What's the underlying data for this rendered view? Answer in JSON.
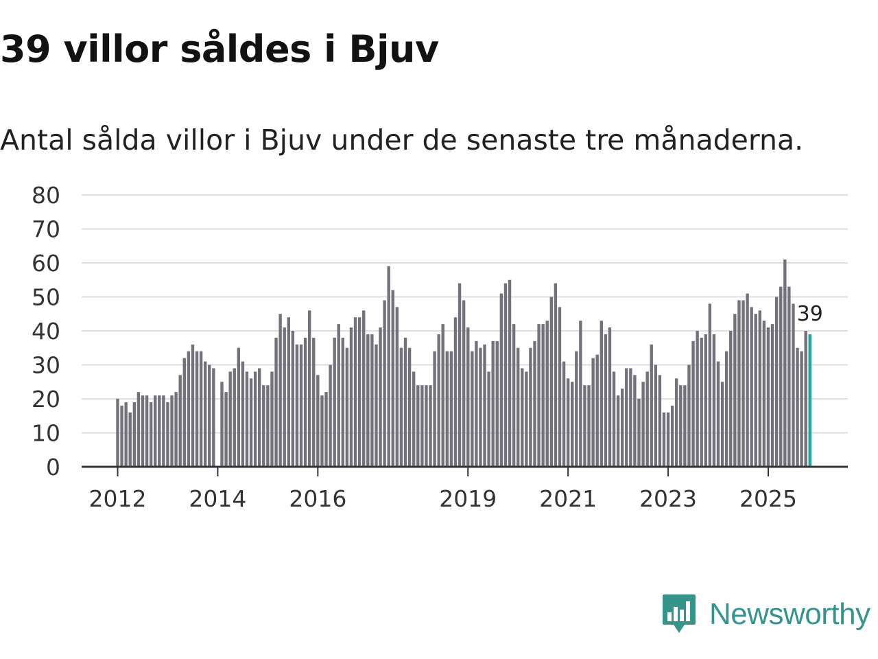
{
  "header": {
    "title": "39 villor såldes i Bjuv",
    "subtitle": "Antal sålda villor i Bjuv under de senaste tre månaderna."
  },
  "brand": {
    "name": "Newsworthy",
    "logo_icon": "bar-chart-speech-bubble-icon",
    "color": "#35958d"
  },
  "colors": {
    "bar": "#72727a",
    "highlight": "#1aa99a",
    "grid": "#dedede",
    "axis": "#333333"
  },
  "chart_data": {
    "type": "bar",
    "title": "39 villor såldes i Bjuv",
    "subtitle": "Antal sålda villor i Bjuv under de senaste tre månaderna.",
    "xlabel": "",
    "ylabel": "",
    "ylim": [
      0,
      80
    ],
    "yticks": [
      "0",
      "10",
      "20",
      "30",
      "40",
      "50",
      "60",
      "70",
      "80"
    ],
    "grid": true,
    "start": "2012-01",
    "x_tick_labels": [
      {
        "label": "2012",
        "index": 0
      },
      {
        "label": "2014",
        "index": 24
      },
      {
        "label": "2016",
        "index": 48
      },
      {
        "label": "2019",
        "index": 84
      },
      {
        "label": "2021",
        "index": 108
      },
      {
        "label": "2023",
        "index": 132
      },
      {
        "label": "2025",
        "index": 156
      }
    ],
    "values": [
      20,
      18,
      19,
      16,
      19,
      22,
      21,
      21,
      19,
      21,
      21,
      21,
      19,
      21,
      22,
      27,
      32,
      34,
      36,
      34,
      34,
      31,
      30,
      29,
      null,
      25,
      22,
      28,
      29,
      35,
      31,
      28,
      26,
      28,
      29,
      24,
      24,
      28,
      38,
      45,
      41,
      44,
      40,
      36,
      36,
      38,
      46,
      38,
      27,
      21,
      22,
      30,
      38,
      42,
      38,
      35,
      41,
      44,
      44,
      46,
      39,
      39,
      36,
      41,
      49,
      59,
      52,
      47,
      35,
      38,
      35,
      28,
      24,
      24,
      24,
      24,
      34,
      39,
      42,
      34,
      34,
      44,
      54,
      49,
      41,
      34,
      37,
      35,
      36,
      28,
      37,
      37,
      51,
      54,
      55,
      42,
      35,
      29,
      28,
      35,
      37,
      42,
      42,
      43,
      50,
      54,
      47,
      31,
      26,
      25,
      34,
      43,
      24,
      24,
      32,
      33,
      43,
      39,
      41,
      28,
      21,
      23,
      29,
      29,
      27,
      20,
      25,
      28,
      36,
      30,
      27,
      16,
      16,
      18,
      26,
      24,
      24,
      30,
      37,
      40,
      38,
      39,
      48,
      39,
      31,
      25,
      34,
      40,
      45,
      49,
      49,
      51,
      47,
      45,
      46,
      43,
      41,
      42,
      50,
      53,
      61,
      53,
      48,
      35,
      34,
      40,
      39
    ],
    "highlight_last": true,
    "last_value_label": "39"
  }
}
